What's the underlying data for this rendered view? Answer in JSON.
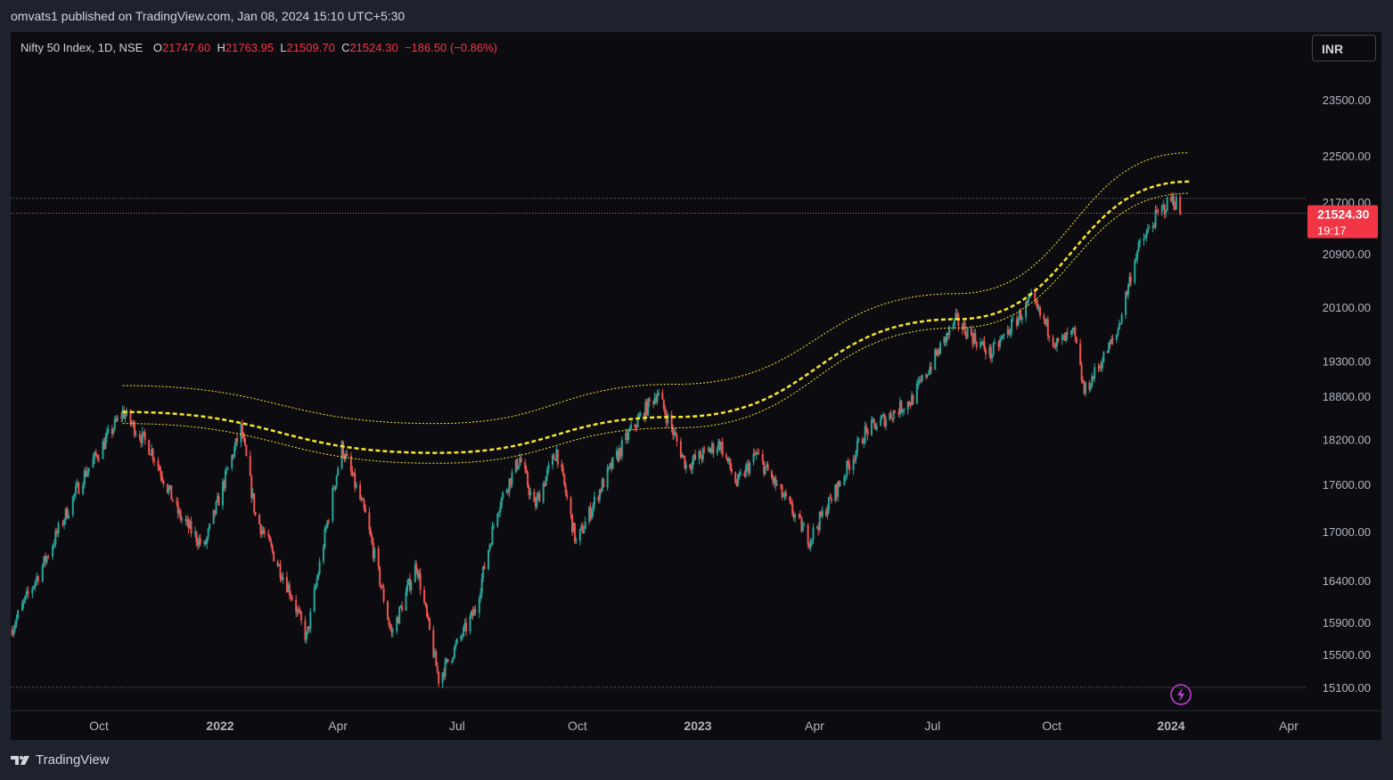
{
  "header": {
    "publish_text": "omvats1 published on TradingView.com, Jan 08, 2024 15:10 UTC+5:30"
  },
  "legend": {
    "symbol": "Nifty 50 Index, 1D, NSE",
    "open_label": "O",
    "open_value": "21747.60",
    "high_label": "H",
    "high_value": "21763.95",
    "low_label": "L",
    "low_value": "21509.70",
    "close_label": "C",
    "close_value": "21524.30",
    "change": "−186.50 (−0.86%)"
  },
  "currency_button": "INR",
  "price_badge": {
    "price": "21524.30",
    "countdown": "19:17"
  },
  "footer": {
    "brand": "TradingView"
  },
  "colors": {
    "background": "#0c0c10",
    "up": "#26a69a",
    "down": "#ef5350",
    "channel": "#f5e626",
    "badge": "#f23645"
  },
  "chart_data": {
    "type": "candlestick",
    "symbol": "Nifty 50 Index",
    "interval": "1D",
    "exchange": "NSE",
    "y_ticks": [
      23500,
      22500,
      21700,
      20900,
      20100,
      19300,
      18800,
      18200,
      17600,
      17000,
      16400,
      15900,
      15500,
      15100
    ],
    "x_ticks": [
      {
        "label": "Oct",
        "date": "2021-10-01",
        "bold": false
      },
      {
        "label": "2022",
        "date": "2022-01-01",
        "bold": true
      },
      {
        "label": "Apr",
        "date": "2022-04-01",
        "bold": false
      },
      {
        "label": "Jul",
        "date": "2022-07-01",
        "bold": false
      },
      {
        "label": "Oct",
        "date": "2022-10-01",
        "bold": false
      },
      {
        "label": "2023",
        "date": "2023-01-01",
        "bold": true
      },
      {
        "label": "Apr",
        "date": "2023-04-01",
        "bold": false
      },
      {
        "label": "Jul",
        "date": "2023-07-01",
        "bold": false
      },
      {
        "label": "Oct",
        "date": "2023-10-01",
        "bold": false
      },
      {
        "label": "2024",
        "date": "2024-01-01",
        "bold": true
      },
      {
        "label": "Apr",
        "date": "2024-04-01",
        "bold": false
      }
    ],
    "price_path": [
      [
        "2021-08-01",
        15800
      ],
      [
        "2021-08-25",
        16650
      ],
      [
        "2021-09-20",
        17700
      ],
      [
        "2021-10-19",
        18580
      ],
      [
        "2021-11-10",
        18050
      ],
      [
        "2021-12-01",
        17200
      ],
      [
        "2021-12-20",
        16800
      ],
      [
        "2022-01-17",
        18350
      ],
      [
        "2022-01-28",
        17200
      ],
      [
        "2022-02-24",
        16250
      ],
      [
        "2022-03-08",
        15700
      ],
      [
        "2022-04-04",
        18100
      ],
      [
        "2022-04-22",
        17200
      ],
      [
        "2022-05-12",
        15750
      ],
      [
        "2022-05-31",
        16600
      ],
      [
        "2022-06-17",
        15200
      ],
      [
        "2022-07-15",
        16050
      ],
      [
        "2022-08-01",
        17300
      ],
      [
        "2022-08-18",
        17950
      ],
      [
        "2022-08-29",
        17300
      ],
      [
        "2022-09-15",
        18050
      ],
      [
        "2022-09-30",
        16850
      ],
      [
        "2022-10-20",
        17600
      ],
      [
        "2022-11-10",
        18300
      ],
      [
        "2022-12-01",
        18850
      ],
      [
        "2022-12-23",
        17850
      ],
      [
        "2023-01-18",
        18150
      ],
      [
        "2023-01-31",
        17600
      ],
      [
        "2023-02-15",
        18000
      ],
      [
        "2023-03-28",
        16900
      ],
      [
        "2023-04-20",
        17600
      ],
      [
        "2023-05-10",
        18300
      ],
      [
        "2023-06-15",
        18750
      ],
      [
        "2023-07-19",
        19900
      ],
      [
        "2023-08-15",
        19400
      ],
      [
        "2023-09-15",
        20200
      ],
      [
        "2023-10-05",
        19550
      ],
      [
        "2023-10-18",
        19700
      ],
      [
        "2023-10-26",
        18850
      ],
      [
        "2023-11-20",
        19700
      ],
      [
        "2023-12-05",
        20900
      ],
      [
        "2023-12-20",
        21450
      ],
      [
        "2024-01-01",
        21750
      ],
      [
        "2024-01-05",
        21700
      ],
      [
        "2024-01-08",
        21524
      ]
    ],
    "last_price": 21524.3,
    "ohlc_last": {
      "open": 21747.6,
      "high": 21763.95,
      "low": 21509.7,
      "close": 21524.3
    },
    "channel": {
      "color": "#f5e626",
      "points": [
        {
          "date": "2021-10-19",
          "upper": 18950,
          "middle": 18580,
          "lower": 18420
        },
        {
          "date": "2022-06-15",
          "upper": 18420,
          "middle": 18020,
          "lower": 17880
        },
        {
          "date": "2022-12-15",
          "upper": 18970,
          "middle": 18510,
          "lower": 18360
        },
        {
          "date": "2023-07-20",
          "upper": 20300,
          "middle": 19920,
          "lower": 19790
        },
        {
          "date": "2024-01-15",
          "upper": 22550,
          "middle": 22050,
          "lower": 21850
        }
      ]
    },
    "horizontal_lines": [
      21763.95,
      15100
    ]
  }
}
